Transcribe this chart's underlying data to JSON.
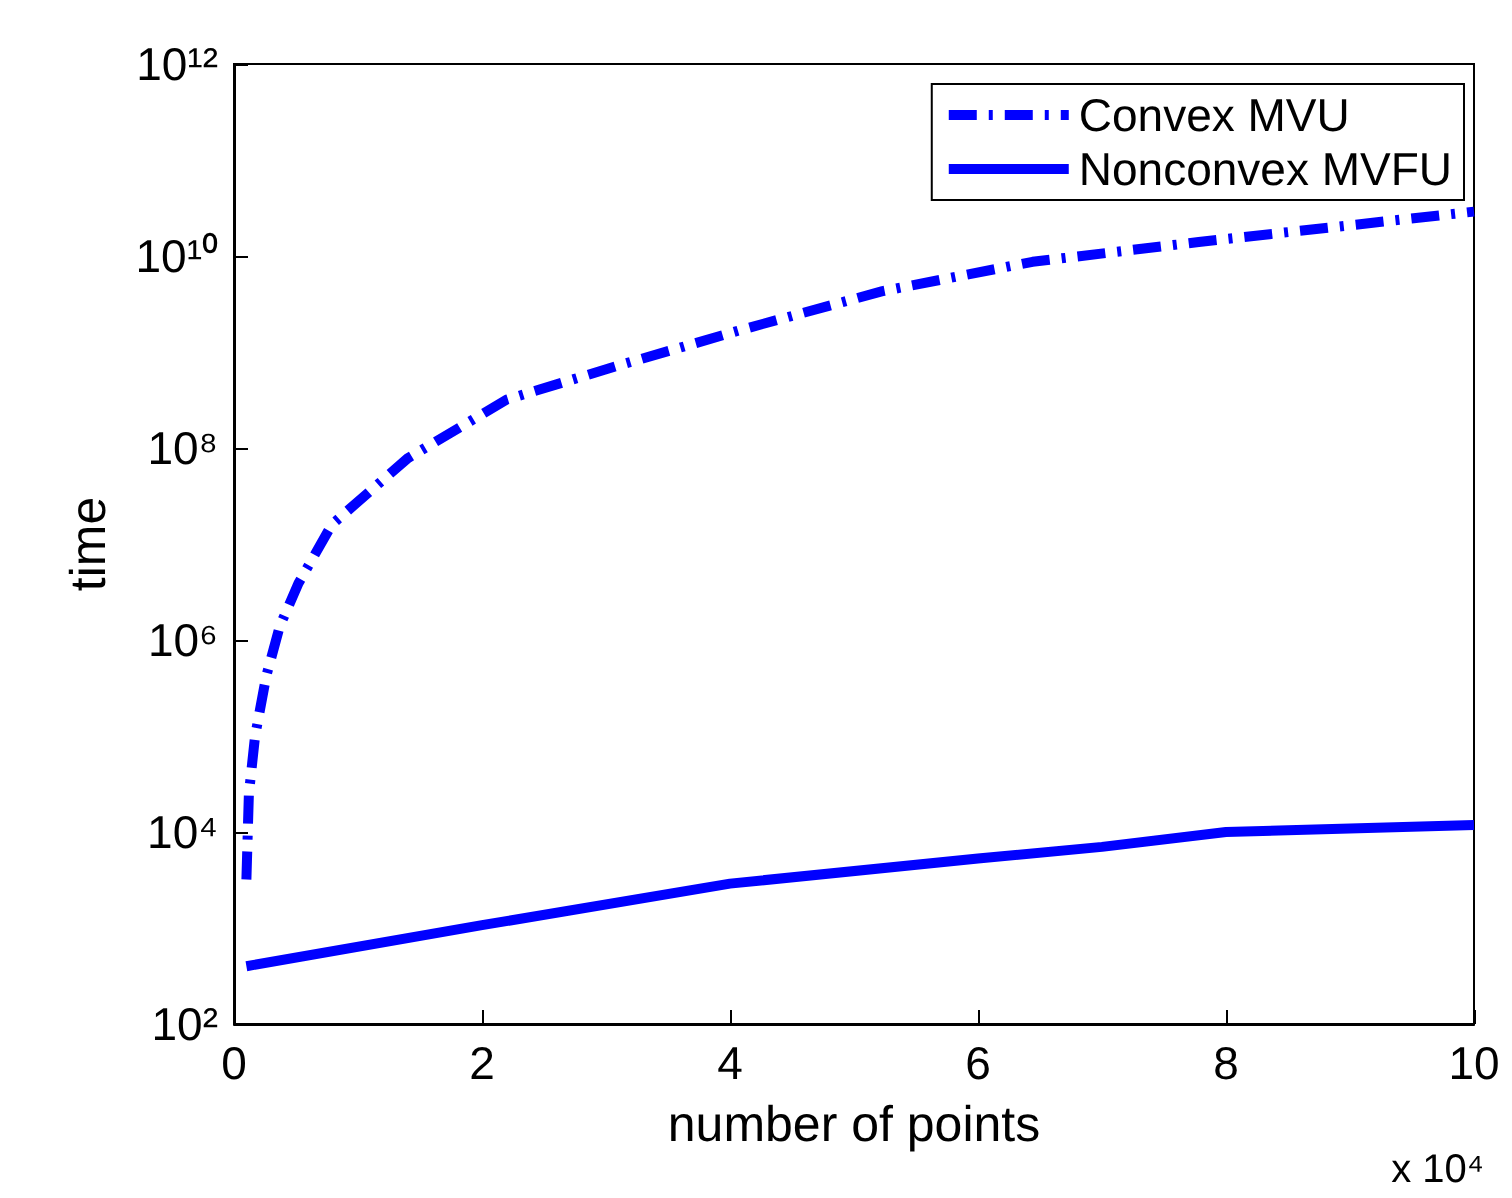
{
  "chart_data": {
    "type": "line",
    "xlabel": "number of points",
    "ylabel": "time",
    "annotations": [
      "x 10⁴"
    ],
    "series": [
      {
        "name": "Convex MVU",
        "color": "#0000ff",
        "line_style": "dashdot",
        "x": [
          0.1,
          0.12,
          0.17,
          0.26,
          0.37,
          0.52,
          0.79,
          1.4,
          2.2,
          3.08,
          4.09,
          5.23,
          6.44,
          7.78,
          10
        ],
        "values": [
          3200,
          25000,
          100000,
          420000,
          1400000,
          3900000,
          16000000,
          78000000,
          320000000,
          710000000,
          1700000000,
          4300000000,
          8700000000,
          14000000000,
          29000000000
        ]
      },
      {
        "name": "Nonconvex MVFU",
        "color": "#0000ff",
        "line_style": "solid",
        "x": [
          0.1,
          2,
          4,
          6,
          7,
          8,
          10
        ],
        "values": [
          400,
          1070,
          2900,
          5300,
          7000,
          10000,
          11800
        ]
      }
    ],
    "xlim": [
      0,
      10
    ],
    "xticks": [
      0,
      2,
      4,
      6,
      8,
      10
    ],
    "ylim": [
      100,
      1000000000000
    ],
    "yticks": [
      {
        "value": 100,
        "label": "10²"
      },
      {
        "value": 10000,
        "label": "10⁴"
      },
      {
        "value": 1000000,
        "label": "10⁶"
      },
      {
        "value": 100000000,
        "label": "10⁸"
      },
      {
        "value": 10000000000,
        "label": "10¹⁰"
      },
      {
        "value": 1000000000000,
        "label": "10¹²"
      }
    ],
    "log": "y",
    "grid": false,
    "legend": "top right",
    "marker": "none"
  }
}
